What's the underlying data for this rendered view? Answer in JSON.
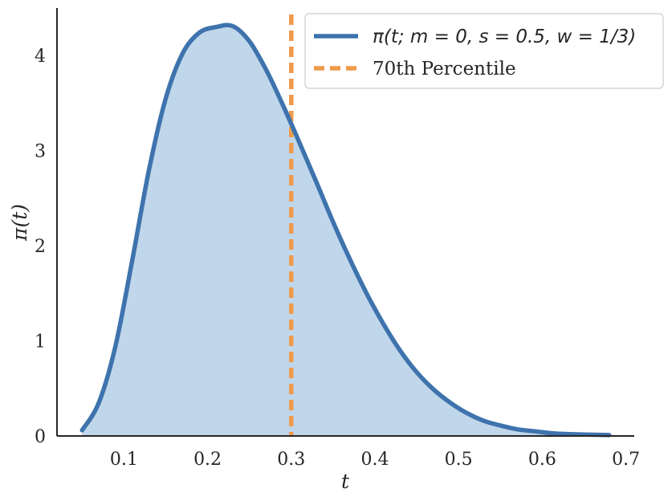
{
  "chart_data": {
    "type": "area",
    "xlabel": "t",
    "ylabel": "π(t)",
    "xlim": [
      0.02,
      0.71
    ],
    "ylim": [
      0,
      4.5
    ],
    "xticks": [
      0.1,
      0.2,
      0.3,
      0.4,
      0.5,
      0.6,
      0.7
    ],
    "xtick_labels": [
      "0.1",
      "0.2",
      "0.3",
      "0.4",
      "0.5",
      "0.6",
      "0.7"
    ],
    "yticks": [
      0,
      1,
      2,
      3,
      4
    ],
    "ytick_labels": [
      "0",
      "1",
      "2",
      "3",
      "4"
    ],
    "grid": false,
    "legend_position": "top-right",
    "series": [
      {
        "name": "π(t; m = 0, s = 0.5, w = 1/3)",
        "kind": "line-with-fill",
        "color": "#3e73ad",
        "fill_color": "#c0d6ea",
        "x": [
          0.05,
          0.07,
          0.09,
          0.11,
          0.13,
          0.15,
          0.17,
          0.19,
          0.21,
          0.23,
          0.25,
          0.27,
          0.29,
          0.31,
          0.33,
          0.35,
          0.37,
          0.39,
          0.41,
          0.43,
          0.45,
          0.47,
          0.49,
          0.51,
          0.53,
          0.55,
          0.57,
          0.59,
          0.61,
          0.63,
          0.65,
          0.68
        ],
        "y": [
          0.06,
          0.35,
          0.95,
          1.85,
          2.8,
          3.55,
          4.02,
          4.24,
          4.3,
          4.31,
          4.15,
          3.85,
          3.48,
          3.08,
          2.67,
          2.25,
          1.86,
          1.5,
          1.18,
          0.9,
          0.67,
          0.49,
          0.35,
          0.24,
          0.16,
          0.11,
          0.07,
          0.05,
          0.03,
          0.02,
          0.015,
          0.01
        ]
      },
      {
        "name": "70th Percentile",
        "kind": "vline",
        "color": "#ef9a4c",
        "x_value": 0.3
      }
    ]
  }
}
